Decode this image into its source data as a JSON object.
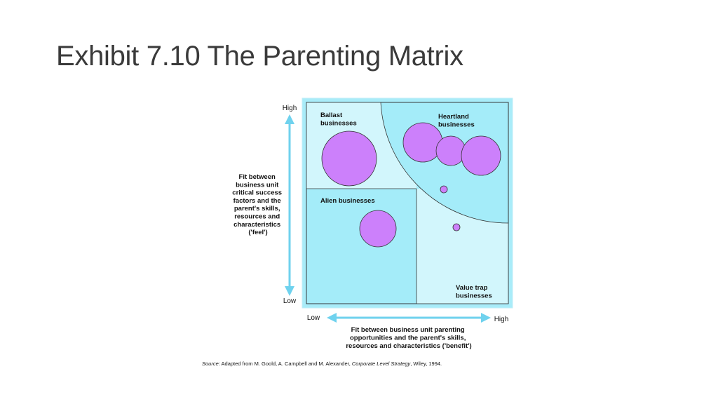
{
  "slide": {
    "title": "Exhibit 7.10 The Parenting Matrix"
  },
  "diagram": {
    "colors": {
      "frame": "#a9ecf9",
      "dark_quadrant": "#a4ecf9",
      "light_quadrant": "#d2f6fc",
      "circle_fill": "#cc80fb",
      "arrow": "#6fd2ee"
    },
    "y_axis": {
      "high": "High",
      "low": "Low",
      "title_lines": [
        "Fit between",
        "business unit",
        "critical success",
        "factors and the",
        "parent's skills,",
        "resources and",
        "characteristics",
        "('feel')"
      ]
    },
    "x_axis": {
      "low": "Low",
      "high": "High",
      "title_lines": [
        "Fit between business unit parenting",
        "opportunities and the parent's skills,",
        "resources and characteristics ('benefit')"
      ]
    },
    "quadrants": {
      "ballast": [
        "Ballast",
        "businesses"
      ],
      "heartland": [
        "Heartland",
        "businesses"
      ],
      "alien": [
        "Alien businesses"
      ],
      "value_trap": [
        "Value trap",
        "businesses"
      ]
    },
    "source": {
      "prefix": "Source",
      "text_1": ": Adapted from M. Goold, A. Campbell and M. Alexander, ",
      "book": "Corporate Level Strategy",
      "text_2": ", Wiley, 1994."
    }
  }
}
